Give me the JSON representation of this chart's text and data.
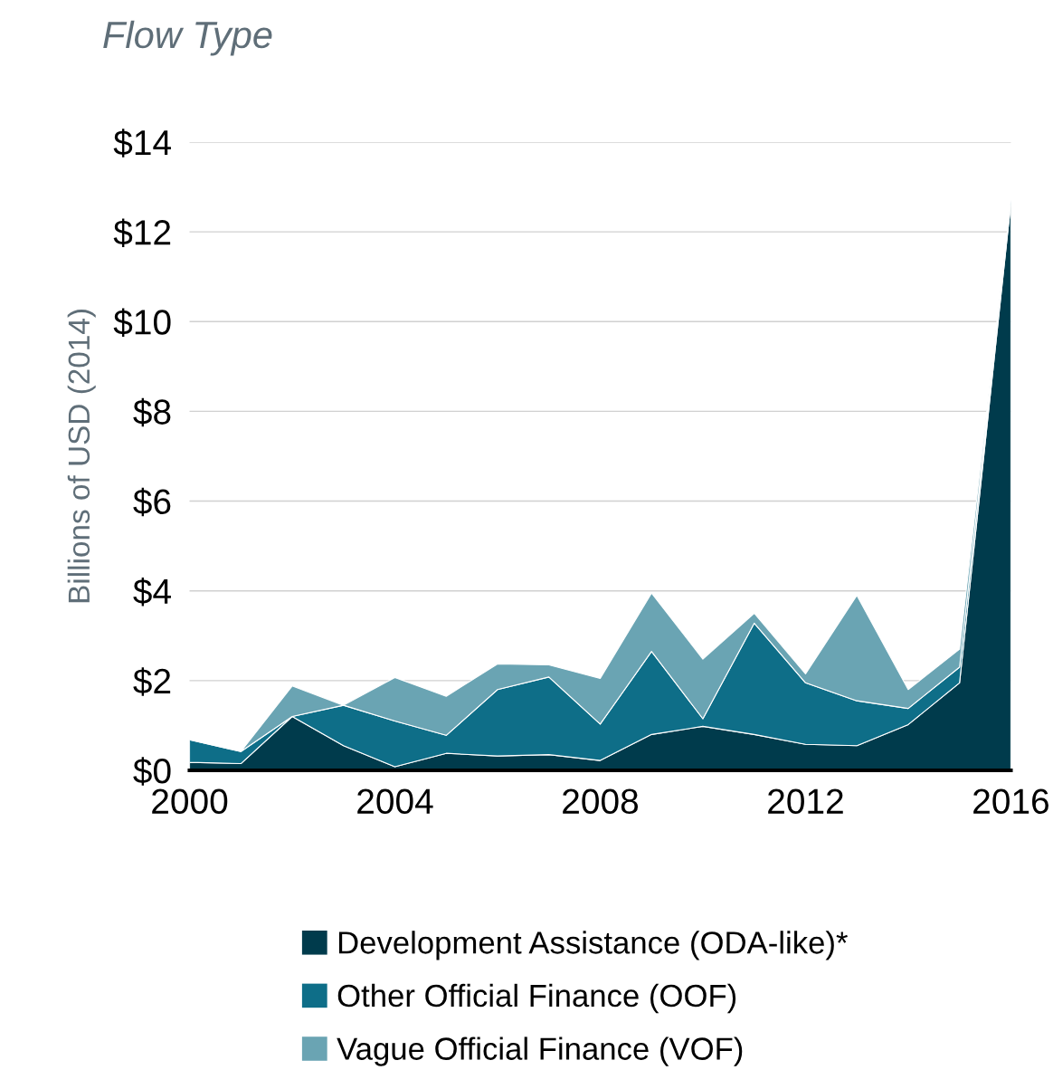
{
  "chart_data": {
    "type": "area",
    "stacked": true,
    "title": "Flow Type",
    "ylabel": "Billions of USD (2014)",
    "x": [
      2000,
      2001,
      2002,
      2003,
      2004,
      2005,
      2006,
      2007,
      2008,
      2009,
      2010,
      2011,
      2012,
      2013,
      2014,
      2015,
      2016
    ],
    "series": [
      {
        "name": "Development Assistance (ODA-like)*",
        "color": "#003b4c",
        "values": [
          0.18,
          0.15,
          1.2,
          0.55,
          0.08,
          0.38,
          0.32,
          0.35,
          0.22,
          0.8,
          0.98,
          0.8,
          0.58,
          0.55,
          1.02,
          1.95,
          12.65
        ]
      },
      {
        "name": "Other Official Finance (OOF)",
        "color": "#0e6e88",
        "values": [
          0.5,
          0.27,
          0,
          0.9,
          1.02,
          0.4,
          1.48,
          1.73,
          0.81,
          1.85,
          0.17,
          2.48,
          1.37,
          1.0,
          0.36,
          0.35,
          0.05
        ]
      },
      {
        "name": "Vague Official Finance (VOF)",
        "color": "#6aa4b3",
        "values": [
          0,
          0,
          0.68,
          0,
          0.97,
          0.87,
          0.57,
          0.27,
          1.02,
          1.3,
          1.33,
          0.22,
          0.2,
          2.35,
          0.42,
          0.4,
          0.02
        ]
      }
    ],
    "xlim": [
      2000,
      2016
    ],
    "xticks": [
      2000,
      2004,
      2008,
      2012,
      2016
    ],
    "ylim": [
      0,
      14
    ],
    "yticks": [
      {
        "value": 0,
        "label": "$0"
      },
      {
        "value": 2,
        "label": "$2"
      },
      {
        "value": 4,
        "label": "$4"
      },
      {
        "value": 6,
        "label": "$6"
      },
      {
        "value": 8,
        "label": "$8"
      },
      {
        "value": 10,
        "label": "$10"
      },
      {
        "value": 12,
        "label": "$12"
      },
      {
        "value": 14,
        "label": "$14"
      }
    ],
    "grid": "y",
    "legend": "bottom"
  }
}
